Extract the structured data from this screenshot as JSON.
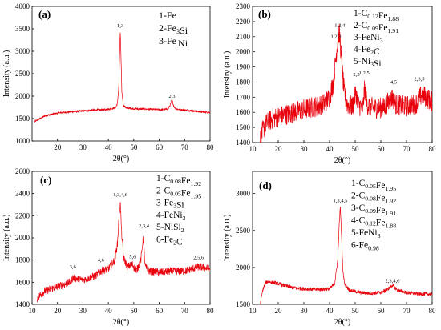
{
  "figure": {
    "panels": [
      {
        "panel_label": "(a)",
        "legend": [
          {
            "main": "1-Fe",
            "parts": [
              [
                "1-Fe",
                ""
              ]
            ]
          },
          {
            "main": "2-Fe3Si",
            "parts": [
              [
                "2-Fe",
                ""
              ],
              [
                "3",
                "sub"
              ],
              [
                "Si",
                ""
              ]
            ]
          },
          {
            "main": "3-Fe Ni",
            "parts": [
              [
                "3-Fe",
                ""
              ],
              [
                " ",
                "sub"
              ],
              [
                "Ni",
                ""
              ]
            ]
          }
        ],
        "peak_labels": [
          {
            "text": "1,3",
            "x": 44.7,
            "y": 3540
          },
          {
            "text": "2,3",
            "x": 65.0,
            "y": 1960
          }
        ]
      },
      {
        "panel_label": "(b)",
        "legend": [
          {
            "main": "1-C0.12Fe1.88",
            "parts": [
              [
                "1-C",
                ""
              ],
              [
                "0.12",
                "sub"
              ],
              [
                "Fe",
                ""
              ],
              [
                "1.88",
                "sub"
              ]
            ]
          },
          {
            "main": "2-C0.09Fe1.91",
            "parts": [
              [
                "2-C",
                ""
              ],
              [
                "0.09",
                "sub"
              ],
              [
                "Fe",
                ""
              ],
              [
                "1.91",
                "sub"
              ]
            ]
          },
          {
            "main": "3-FeNi3",
            "parts": [
              [
                "3-FeNi",
                ""
              ],
              [
                "3",
                "sub"
              ]
            ]
          },
          {
            "main": "4-Fe2C",
            "parts": [
              [
                "4-Fe",
                ""
              ],
              [
                "2",
                "sub"
              ],
              [
                "C",
                ""
              ]
            ]
          },
          {
            "main": "5-Ni3Si",
            "parts": [
              [
                "5-Ni",
                ""
              ],
              [
                "3",
                "sub"
              ],
              [
                "Si",
                ""
              ]
            ]
          }
        ],
        "peak_labels": [
          {
            "text": "1,2,4",
            "x": 44.0,
            "y": 2165
          },
          {
            "text": "1,2,3",
            "x": 42.5,
            "y": 2090
          },
          {
            "text": "2,5",
            "x": 50.5,
            "y": 1840
          },
          {
            "text": "1,2,5",
            "x": 53.5,
            "y": 1850
          },
          {
            "text": "4,5",
            "x": 65.0,
            "y": 1790
          },
          {
            "text": "2,3,5",
            "x": 75.0,
            "y": 1810
          }
        ]
      },
      {
        "panel_label": "(c)",
        "legend": [
          {
            "main": "1-C0.08Fe1.92",
            "parts": [
              [
                "1-C",
                ""
              ],
              [
                "0.08",
                "sub"
              ],
              [
                "Fe",
                ""
              ],
              [
                "1.92",
                "sub"
              ]
            ]
          },
          {
            "main": "2-C0.05Fe1.95",
            "parts": [
              [
                "2-C",
                ""
              ],
              [
                "0.05",
                "sub"
              ],
              [
                "Fe",
                ""
              ],
              [
                "1.95",
                "sub"
              ]
            ]
          },
          {
            "main": "3-Fe3Si",
            "parts": [
              [
                "3-Fe",
                ""
              ],
              [
                "3",
                "sub"
              ],
              [
                "Si",
                ""
              ]
            ]
          },
          {
            "main": "4-FeNi3",
            "parts": [
              [
                "4-FeNi",
                ""
              ],
              [
                "3",
                "sub"
              ]
            ]
          },
          {
            "main": "5-NiSi2",
            "parts": [
              [
                "5-NiSi",
                ""
              ],
              [
                "2",
                "sub"
              ]
            ]
          },
          {
            "main": "6-Fe2C",
            "parts": [
              [
                "6-Fe",
                ""
              ],
              [
                "2",
                "sub"
              ],
              [
                "C",
                ""
              ]
            ]
          }
        ],
        "peak_labels": [
          {
            "text": "1,3,4,6",
            "x": 44.7,
            "y": 2375
          },
          {
            "text": "2,3,4",
            "x": 54.0,
            "y": 2095
          },
          {
            "text": "3,6",
            "x": 26.0,
            "y": 1725
          },
          {
            "text": "4,6",
            "x": 37.0,
            "y": 1785
          },
          {
            "text": "5,6",
            "x": 49.5,
            "y": 1815
          },
          {
            "text": "2,5,6",
            "x": 75.5,
            "y": 1810
          }
        ]
      },
      {
        "panel_label": "(d)",
        "legend": [
          {
            "main": "1-C0.05Fe1.95",
            "parts": [
              [
                "1-C",
                ""
              ],
              [
                "0.05",
                "sub"
              ],
              [
                "Fe",
                ""
              ],
              [
                "1.95",
                "sub"
              ]
            ]
          },
          {
            "main": "2-C0.08Fe1.92",
            "parts": [
              [
                "2-C",
                ""
              ],
              [
                "0.08",
                "sub"
              ],
              [
                "Fe",
                ""
              ],
              [
                "1.92",
                "sub"
              ]
            ]
          },
          {
            "main": "3-C0.09Fe1.91",
            "parts": [
              [
                "3-C",
                ""
              ],
              [
                "0.09",
                "sub"
              ],
              [
                "Fe",
                ""
              ],
              [
                "1.91",
                "sub"
              ]
            ]
          },
          {
            "main": "4-C0.12Fe1.88",
            "parts": [
              [
                "4-C",
                ""
              ],
              [
                "0.12",
                "sub"
              ],
              [
                "Fe",
                ""
              ],
              [
                "1.88",
                "sub"
              ]
            ]
          },
          {
            "main": "5-FeNi3",
            "parts": [
              [
                "5-FeNi",
                ""
              ],
              [
                "3",
                "sub"
              ]
            ]
          },
          {
            "main": "6-Fe0.98",
            "parts": [
              [
                "6-Fe",
                ""
              ],
              [
                "0.98",
                "sub"
              ]
            ]
          }
        ],
        "peak_labels": [
          {
            "text": "1,3,4,5",
            "x": 44.2,
            "y": 2880
          },
          {
            "text": "2,3,4,6",
            "x": 64.5,
            "y": 1800
          }
        ]
      }
    ]
  },
  "chart_data": [
    {
      "type": "line",
      "title": "",
      "xlabel": "2θ(°)",
      "ylabel": "Intensity (a.u.)",
      "xlim": [
        10,
        80
      ],
      "ylim": [
        1000,
        4000
      ],
      "xticks": [
        20,
        30,
        40,
        50,
        60,
        70,
        80
      ],
      "yticks": [
        1000,
        1500,
        2000,
        2500,
        3000,
        3500,
        4000
      ],
      "line_color": "#e8000b",
      "grid": false,
      "series": [
        {
          "x": [
            11,
            15,
            20,
            25,
            30,
            35,
            38,
            40,
            42,
            43,
            43.6,
            44.1,
            44.4,
            44.7,
            45.0,
            45.3,
            45.9,
            47,
            50,
            55,
            60,
            62,
            63.5,
            64.3,
            65.0,
            65.7,
            66.5,
            68,
            72,
            76,
            80
          ],
          "y": [
            1430,
            1560,
            1620,
            1650,
            1670,
            1690,
            1700,
            1710,
            1730,
            1760,
            1850,
            2200,
            2900,
            3460,
            2800,
            2100,
            1800,
            1740,
            1720,
            1710,
            1700,
            1700,
            1720,
            1800,
            1920,
            1780,
            1720,
            1700,
            1680,
            1650,
            1640
          ],
          "noise": 22
        }
      ]
    },
    {
      "type": "line",
      "title": "",
      "xlabel": "2θ(°)",
      "ylabel": "Intensity (a.u.)",
      "xlim": [
        10,
        80
      ],
      "ylim": [
        1400,
        2300
      ],
      "xticks": [
        10,
        20,
        30,
        40,
        50,
        60,
        70,
        80
      ],
      "yticks": [
        1400,
        1500,
        1600,
        1700,
        1800,
        1900,
        2000,
        2100,
        2200,
        2300
      ],
      "line_color": "#e8000b",
      "grid": false,
      "series": [
        {
          "x": [
            13,
            14,
            15,
            18,
            22,
            26,
            30,
            35,
            38,
            40,
            41.5,
            42.5,
            43.2,
            43.8,
            44.3,
            45.0,
            45.8,
            47,
            49,
            50.3,
            51.2,
            53,
            53.7,
            54.6,
            57,
            61,
            64.5,
            66,
            70,
            74,
            76,
            80
          ],
          "y": [
            1420,
            1480,
            1520,
            1560,
            1580,
            1600,
            1620,
            1640,
            1660,
            1700,
            1800,
            1960,
            2080,
            2130,
            2030,
            1860,
            1720,
            1650,
            1640,
            1730,
            1650,
            1630,
            1760,
            1650,
            1630,
            1630,
            1700,
            1650,
            1640,
            1660,
            1720,
            1670
          ],
          "noise": 70
        }
      ]
    },
    {
      "type": "line",
      "title": "",
      "xlabel": "2θ(°)",
      "ylabel": "Intensity (a.u.)",
      "xlim": [
        10,
        80
      ],
      "ylim": [
        1400,
        2600
      ],
      "xticks": [
        10,
        20,
        30,
        40,
        50,
        60,
        70,
        80
      ],
      "yticks": [
        1400,
        1600,
        1800,
        2000,
        2200,
        2400,
        2600
      ],
      "line_color": "#e8000b",
      "grid": false,
      "series": [
        {
          "x": [
            12,
            13,
            15,
            20,
            25,
            26,
            30,
            35,
            37,
            40,
            42.5,
            43.6,
            44.2,
            44.7,
            45.2,
            46.0,
            47.5,
            49.5,
            51,
            52.8,
            53.7,
            54.5,
            56,
            60,
            65,
            70,
            75.5,
            80
          ],
          "y": [
            1450,
            1480,
            1520,
            1560,
            1600,
            1640,
            1620,
            1660,
            1700,
            1720,
            1800,
            1950,
            2200,
            2320,
            2050,
            1820,
            1740,
            1760,
            1700,
            1800,
            2000,
            1740,
            1700,
            1690,
            1700,
            1700,
            1740,
            1720
          ],
          "noise": 35
        }
      ]
    },
    {
      "type": "line",
      "title": "",
      "xlabel": "2θ(°)",
      "ylabel": "Intensity (a.u.)",
      "xlim": [
        10,
        80
      ],
      "ylim": [
        1500,
        3300
      ],
      "xticks": [
        10,
        20,
        30,
        40,
        50,
        60,
        70,
        80
      ],
      "yticks": [
        1500,
        2000,
        2500,
        3000
      ],
      "line_color": "#e8000b",
      "grid": false,
      "series": [
        {
          "x": [
            13,
            14,
            15,
            16,
            20,
            25,
            30,
            35,
            40,
            42,
            43.2,
            43.8,
            44.2,
            44.6,
            45.2,
            46,
            48,
            52,
            56,
            60,
            62.5,
            64.5,
            66.5,
            70,
            75,
            80
          ],
          "y": [
            1500,
            1700,
            1790,
            1810,
            1780,
            1730,
            1710,
            1700,
            1710,
            1780,
            2100,
            2600,
            2820,
            2500,
            1950,
            1760,
            1690,
            1660,
            1650,
            1660,
            1700,
            1760,
            1690,
            1660,
            1640,
            1640
          ],
          "noise": 25
        }
      ]
    }
  ]
}
